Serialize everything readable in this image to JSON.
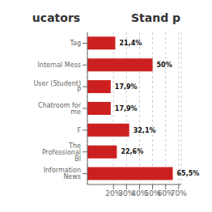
{
  "chart_data": {
    "type": "bar",
    "title": "ucators",
    "subtitle": "Stand p",
    "orientation": "horizontal",
    "categories": [
      "Tag",
      "Internal Mess",
      "User (Student) P",
      "Chatroom for me",
      "F",
      "The Professional Bl",
      "Information News"
    ],
    "values": [
      21.4,
      50.0,
      17.9,
      17.9,
      32.1,
      22.6,
      65.5
    ],
    "value_labels": [
      "21,4%",
      "50%",
      "17,9%",
      "17,9%",
      "32,1%",
      "22,6%",
      "65,5%"
    ],
    "color": "#cc2020",
    "xlim": [
      0,
      72
    ],
    "xticks": [
      {
        "value": 20,
        "label": "20%"
      },
      {
        "value": 30,
        "label": "30%"
      },
      {
        "value": 40,
        "label": "40%"
      },
      {
        "value": 50,
        "label": "50%"
      },
      {
        "value": 60,
        "label": "60%"
      },
      {
        "value": 70,
        "label": "70%"
      }
    ],
    "grid": true,
    "data_labels": true
  }
}
